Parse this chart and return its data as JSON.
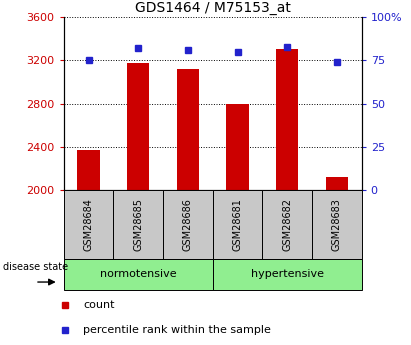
{
  "title": "GDS1464 / M75153_at",
  "samples": [
    "GSM28684",
    "GSM28685",
    "GSM28686",
    "GSM28681",
    "GSM28682",
    "GSM28683"
  ],
  "counts": [
    2370,
    3175,
    3120,
    2800,
    3310,
    2120
  ],
  "percentiles": [
    75,
    82,
    81,
    80,
    83,
    74
  ],
  "ylim_left": [
    2000,
    3600
  ],
  "ylim_right": [
    0,
    100
  ],
  "yticks_left": [
    2000,
    2400,
    2800,
    3200,
    3600
  ],
  "yticks_right": [
    0,
    25,
    50,
    75,
    100
  ],
  "ytick_labels_right": [
    "0",
    "25",
    "50",
    "75",
    "100%"
  ],
  "bar_color": "#cc0000",
  "dot_color": "#2222cc",
  "group1_label": "normotensive",
  "group2_label": "hypertensive",
  "group_bg_color": "#90ee90",
  "sample_box_color": "#c8c8c8",
  "title_fontsize": 10,
  "tick_fontsize": 8,
  "legend_label_count": "count",
  "legend_label_pct": "percentile rank within the sample",
  "disease_state_label": "disease state"
}
